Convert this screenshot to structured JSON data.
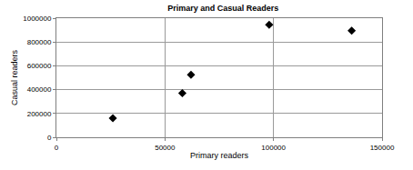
{
  "chart_data": {
    "type": "scatter",
    "title": "Primary and Casual Readers",
    "x_label": "Primary readers",
    "y_label": "Casual readers",
    "x": [
      26000,
      58000,
      62000,
      98000,
      136000
    ],
    "values": [
      160000,
      370000,
      525000,
      945000,
      895000
    ],
    "color": "#000000",
    "marker": "diamond",
    "xlim": [
      0,
      150000
    ],
    "xticks": [
      0,
      50000,
      100000,
      150000
    ],
    "ylim": [
      0,
      1000000
    ],
    "yticks": [
      0,
      200000,
      400000,
      600000,
      800000,
      1000000
    ],
    "grid": true
  }
}
